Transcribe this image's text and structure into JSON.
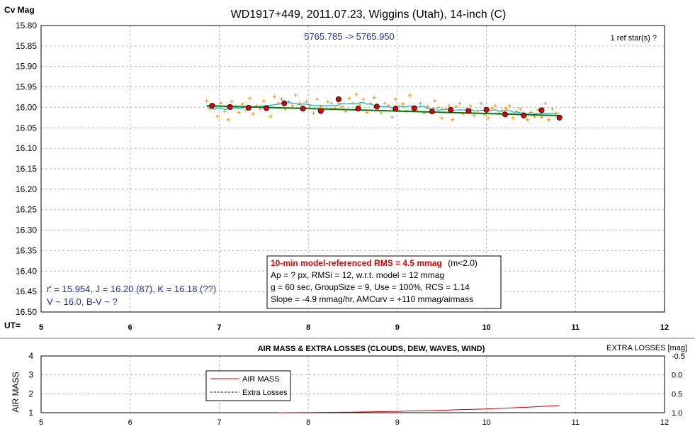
{
  "colors": {
    "points": "#ff8c00",
    "group_marker_fill": "#e00000",
    "trend_green": "#007a00",
    "running_avg": "#00b4d8",
    "airmass": "#cc0000",
    "extra_losses": "#000080",
    "annotation_blue": "#1f2f9a",
    "rms_red": "#e00000",
    "grid": "#b4b4b4"
  },
  "chart_data": [
    {
      "type": "scatter",
      "title": "WD1917+449, 2011.07.23, Wiggins (Utah), 14-inch (C)",
      "ylabel": "Cv Mag",
      "xlabel": "UT=",
      "xlim": [
        5,
        12
      ],
      "ylim": [
        15.8,
        16.5
      ],
      "y_inverted": true,
      "grid": true,
      "x_ticks": [
        "5",
        "6",
        "7",
        "8",
        "9",
        "10",
        "11",
        "12"
      ],
      "y_ticks": [
        "15.80",
        "15.85",
        "15.90",
        "15.95",
        "16.00",
        "16.05",
        "16.10",
        "16.15",
        "16.20",
        "16.25",
        "16.30",
        "16.35",
        "16.40",
        "16.45",
        "16.50"
      ],
      "series": [
        {
          "kind": "individual",
          "x": [
            6.86,
            6.9,
            6.94,
            6.98,
            7.02,
            7.06,
            7.1,
            7.14,
            7.18,
            7.22,
            7.26,
            7.3,
            7.34,
            7.38,
            7.42,
            7.46,
            7.5,
            7.54,
            7.58,
            7.62,
            7.66,
            7.7,
            7.74,
            7.78,
            7.82,
            7.86,
            7.9,
            7.94,
            7.98,
            8.02,
            8.06,
            8.1,
            8.14,
            8.18,
            8.22,
            8.26,
            8.3,
            8.34,
            8.38,
            8.42,
            8.46,
            8.5,
            8.54,
            8.58,
            8.62,
            8.66,
            8.7,
            8.74,
            8.78,
            8.82,
            8.86,
            8.9,
            8.94,
            8.98,
            9.02,
            9.06,
            9.1,
            9.14,
            9.18,
            9.22,
            9.26,
            9.3,
            9.34,
            9.38,
            9.42,
            9.46,
            9.5,
            9.54,
            9.58,
            9.62,
            9.66,
            9.7,
            9.74,
            9.78,
            9.82,
            9.86,
            9.9,
            9.94,
            9.98,
            10.02,
            10.06,
            10.1,
            10.14,
            10.18,
            10.22,
            10.26,
            10.3,
            10.34,
            10.38,
            10.42,
            10.46,
            10.5,
            10.54,
            10.58,
            10.62,
            10.66,
            10.7,
            10.74,
            10.78,
            10.82
          ],
          "y": [
            15.984,
            16.004,
            15.994,
            16.022,
            15.99,
            16.01,
            16.03,
            15.986,
            15.998,
            16.012,
            15.992,
            16.006,
            15.978,
            16.016,
            15.996,
            16.004,
            15.984,
            15.998,
            16.022,
            15.974,
            15.99,
            15.98,
            16.004,
            15.986,
            15.996,
            15.97,
            15.99,
            16.004,
            15.986,
            15.996,
            16.014,
            15.98,
            15.998,
            16.006,
            15.986,
            15.99,
            16.002,
            15.99,
            15.998,
            16.01,
            15.978,
            15.99,
            15.968,
            15.994,
            15.98,
            16.012,
            15.99,
            15.976,
            16.004,
            16.014,
            15.99,
            15.996,
            16.024,
            15.98,
            16.008,
            15.992,
            16.01,
            15.97,
            16.0,
            16.006,
            15.99,
            16.014,
            15.998,
            16.012,
            15.984,
            16.0,
            16.026,
            16.004,
            15.996,
            16.03,
            15.998,
            15.99,
            16.016,
            16.004,
            15.996,
            16.02,
            16.008,
            15.99,
            16.018,
            16.026,
            16.002,
            15.996,
            16.014,
            16.008,
            16.002,
            15.996,
            16.026,
            16.01,
            16.004,
            16.014,
            16.03,
            16.012,
            16.022,
            16.006,
            16.024,
            15.99,
            16.03,
            16.004,
            16.014,
            16.03
          ]
        },
        {
          "kind": "group_average",
          "x": [
            6.92,
            7.12,
            7.33,
            7.53,
            7.73,
            7.94,
            8.14,
            8.34,
            8.56,
            8.77,
            8.98,
            9.19,
            9.39,
            9.6,
            9.8,
            10.0,
            10.21,
            10.42,
            10.62,
            10.82
          ],
          "y": [
            15.996,
            15.999,
            16.001,
            16.002,
            15.99,
            16.003,
            16.009,
            15.98,
            16.003,
            15.998,
            16.003,
            16.002,
            16.01,
            16.006,
            16.009,
            16.006,
            16.017,
            16.02,
            16.007,
            16.025
          ]
        },
        {
          "kind": "model_trend",
          "x": [
            6.86,
            10.82
          ],
          "y": [
            15.996,
            16.02
          ]
        }
      ],
      "annotations": {
        "date_range": "5765.785 -> 5765.950",
        "ref_stars": "1 ref star(s) ?",
        "catalog_line1": "r' = 15.954, J = 16.20 (87), K = 16.18 (??)",
        "catalog_line2": "V ~ 16.0, B-V ~ ?",
        "rms_box": {
          "headline": "10-min model-referenced RMS = 4.5 mmag",
          "headline_suffix": "(m<2.0)",
          "line2": "Ap = ? px, RMSi = 12, w.r.t. model = 12 mmag",
          "line3": "g = 60 sec, GroupSize = 9, Use = 100%, RCS = 1.14",
          "line4": "Slope = -4.9 mmag/hr, AMCurv = +110 mmag/airmass"
        }
      }
    },
    {
      "type": "line",
      "title": "AIR MASS & EXTRA LOSSES (CLOUDS, DEW, WAVES, WIND)",
      "ylabel": "AIR MASS",
      "y2label": "EXTRA LOSSES [mag]",
      "xlim": [
        5,
        12
      ],
      "ylim": [
        1,
        4
      ],
      "y2lim": [
        1.0,
        -0.5
      ],
      "x_ticks": [
        "5",
        "6",
        "7",
        "8",
        "9",
        "10",
        "11",
        "12"
      ],
      "y_ticks": [
        "1",
        "2",
        "3",
        "4"
      ],
      "y2_ticks": [
        "-0.5",
        "0.0",
        "0.5",
        "1.0"
      ],
      "legend_position": "upper-left",
      "series": [
        {
          "name": "AIR MASS",
          "x": [
            7.66,
            8.0,
            8.5,
            9.0,
            9.5,
            10.0,
            10.5,
            10.82
          ],
          "y": [
            1.0,
            1.01,
            1.03,
            1.07,
            1.13,
            1.2,
            1.3,
            1.38
          ]
        },
        {
          "name": "Extra Losses",
          "x": [],
          "y": []
        }
      ]
    }
  ]
}
